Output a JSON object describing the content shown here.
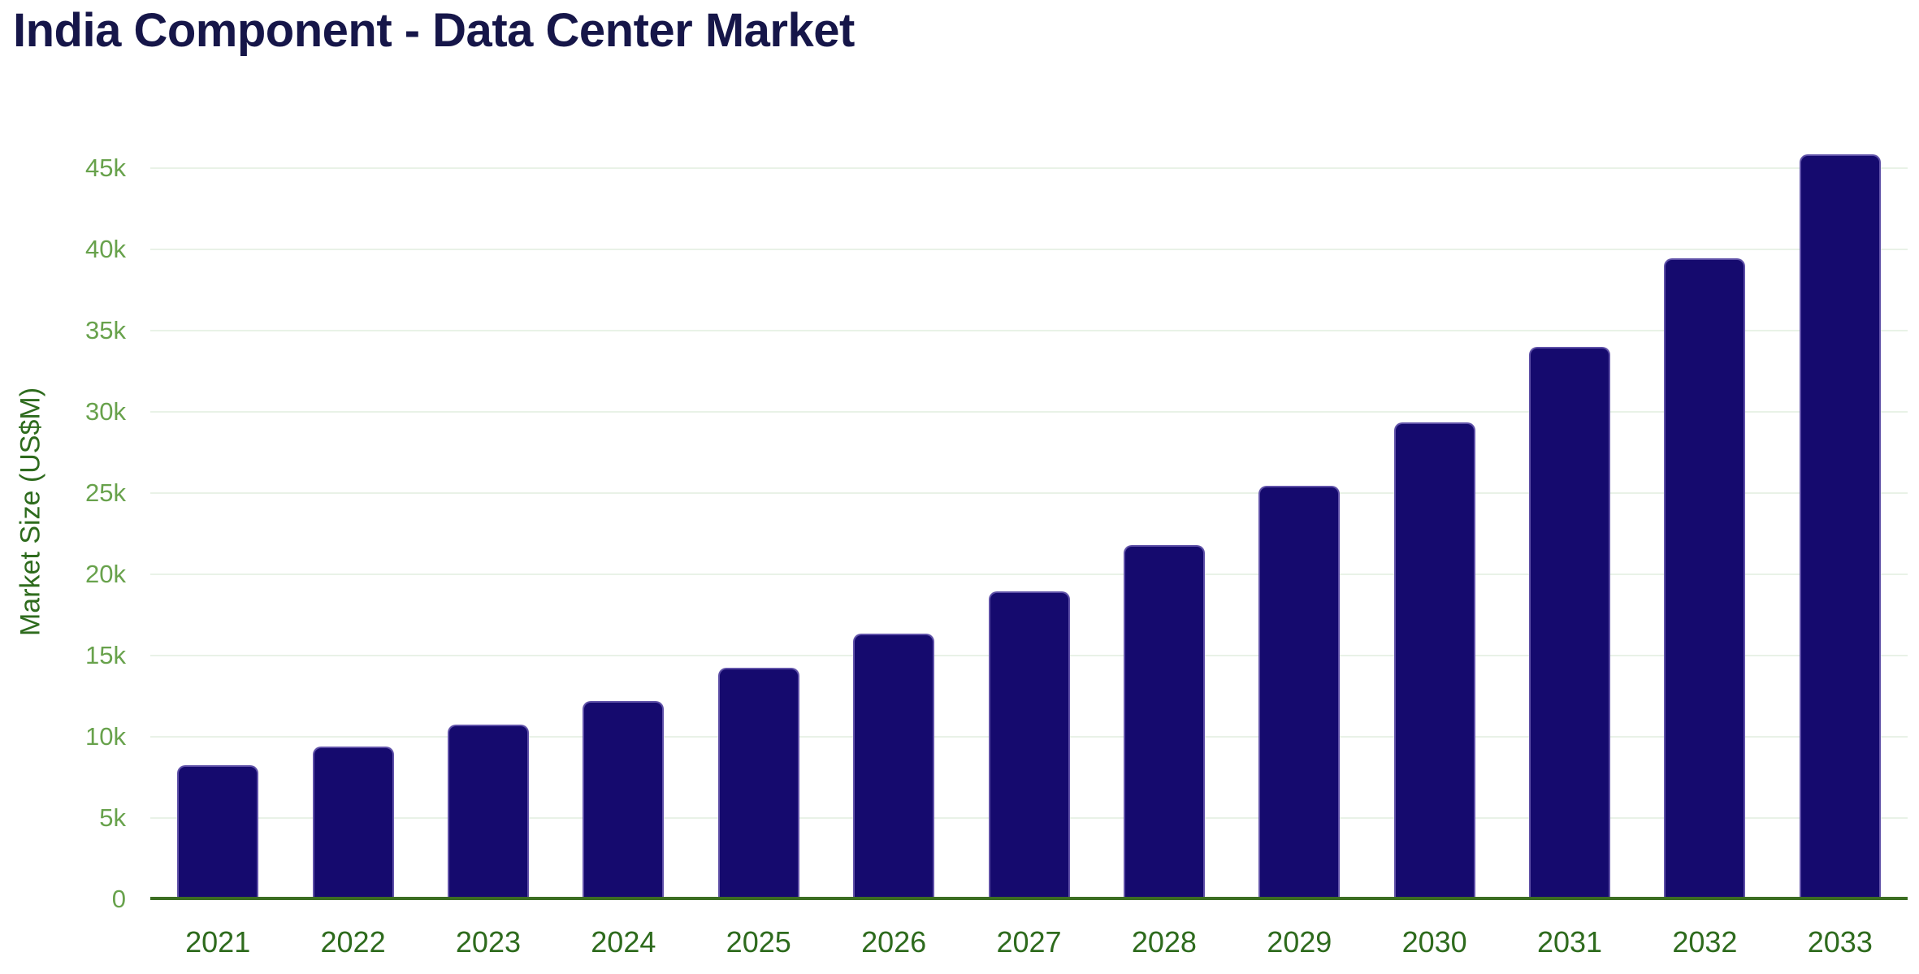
{
  "title": "India Component - Data Center Market",
  "chart_data": {
    "type": "bar",
    "title": "India Component - Data Center Market",
    "xlabel": "",
    "ylabel": "Market Size (US$M)",
    "categories": [
      "2021",
      "2022",
      "2023",
      "2024",
      "2025",
      "2026",
      "2027",
      "2028",
      "2029",
      "2030",
      "2031",
      "2032",
      "2033"
    ],
    "values": [
      8250,
      9400,
      10750,
      12200,
      14250,
      16350,
      18950,
      21800,
      25450,
      29350,
      34000,
      39450,
      45850
    ],
    "series_name": "Market Size (US$M)",
    "ylim": [
      0,
      46000
    ],
    "yticks": [
      0,
      5000,
      10000,
      15000,
      20000,
      25000,
      30000,
      35000,
      40000,
      45000
    ],
    "ytick_labels": [
      "0",
      "5k",
      "10k",
      "15k",
      "20k",
      "25k",
      "30k",
      "35k",
      "40k",
      "45k"
    ],
    "grid": "horizontal",
    "legend": "none"
  },
  "colors": {
    "background": "#ffffff",
    "title": "#161649",
    "bar_fill": "#150a6e",
    "bar_edge": "rgba(136,120,200,0.65)",
    "axis_title": "#2e6b1d",
    "x_tick_labels": "#2e6b1d",
    "y_tick_labels": "#68a24c",
    "axis_line": "#3c6e22",
    "gridline": "#e9f2e7"
  }
}
